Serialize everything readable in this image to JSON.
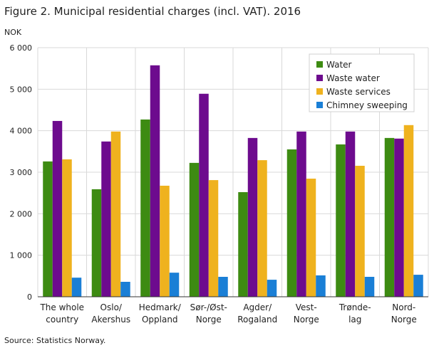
{
  "chart_data": {
    "type": "bar",
    "title": "Figure 2. Municipal residential charges (incl. VAT). 2016",
    "ylabel": "NOK",
    "xlabel": "",
    "ylim": [
      0,
      6000
    ],
    "yticks": [
      0,
      1000,
      2000,
      3000,
      4000,
      5000,
      6000
    ],
    "ytick_labels": [
      "0",
      "1 000",
      "2 000",
      "3 000",
      "4 000",
      "5 000",
      "6 000"
    ],
    "grid": true,
    "legend_position": "top-right",
    "categories": [
      [
        "The whole",
        "country"
      ],
      [
        "Oslo/",
        "Akershus"
      ],
      [
        "Hedmark/",
        "Oppland"
      ],
      [
        "Sør-/Øst-",
        "Norge"
      ],
      [
        "Agder/",
        "Rogaland"
      ],
      [
        "Vest-",
        "Norge"
      ],
      [
        "Trønde-",
        "lag"
      ],
      [
        "Nord-",
        "Norge"
      ]
    ],
    "series": [
      {
        "name": "Water",
        "color": "#3d8b12",
        "values": [
          3260,
          2590,
          4270,
          3225,
          2520,
          3550,
          3670,
          3825
        ]
      },
      {
        "name": "Waste water",
        "color": "#6d0b8e",
        "values": [
          4235,
          3740,
          5575,
          4890,
          3825,
          3980,
          3980,
          3810
        ]
      },
      {
        "name": "Waste services",
        "color": "#efb21e",
        "values": [
          3310,
          3980,
          2675,
          2810,
          3290,
          2845,
          3155,
          4135
        ]
      },
      {
        "name": "Chimney sweeping",
        "color": "#1a7fd6",
        "values": [
          460,
          360,
          580,
          480,
          410,
          515,
          480,
          530
        ]
      }
    ],
    "source": "Source: Statistics Norway."
  }
}
